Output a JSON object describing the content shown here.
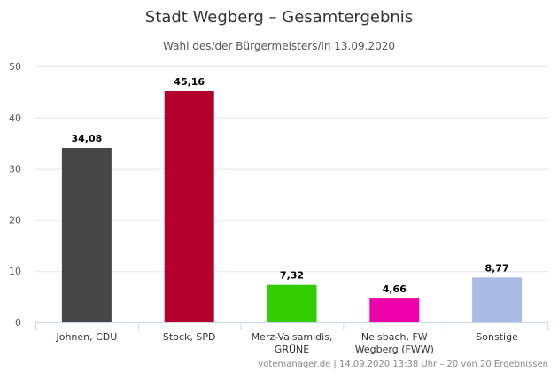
{
  "chart_data": {
    "type": "bar",
    "title": "Stadt Wegberg – Gesamtergebnis",
    "subtitle": "Wahl des/der Bürgermeisters/in 13.09.2020",
    "categories": [
      [
        "Johnen, CDU"
      ],
      [
        "Stock, SPD"
      ],
      [
        "Merz-Valsamidis,",
        "GRÜNE"
      ],
      [
        "Nelsbach, FW",
        "Wegberg (FWW)"
      ],
      [
        "Sonstige"
      ]
    ],
    "values": [
      34.08,
      45.16,
      7.32,
      4.66,
      8.77
    ],
    "value_labels": [
      "34,08",
      "45,16",
      "7,32",
      "4,66",
      "8,77"
    ],
    "colors": [
      "#464646",
      "#b3002d",
      "#33cc00",
      "#ee00aa",
      "#aabbe6"
    ],
    "ylim": [
      0,
      50
    ],
    "yticks": [
      0,
      10,
      20,
      30,
      40,
      50
    ],
    "grid": true,
    "xlabel": "",
    "ylabel": ""
  },
  "credit": {
    "source": "votemanager.de",
    "separator": " | ",
    "detail": "14.09.2020 13:38 Uhr – 20 von 20 Ergebnissen"
  }
}
